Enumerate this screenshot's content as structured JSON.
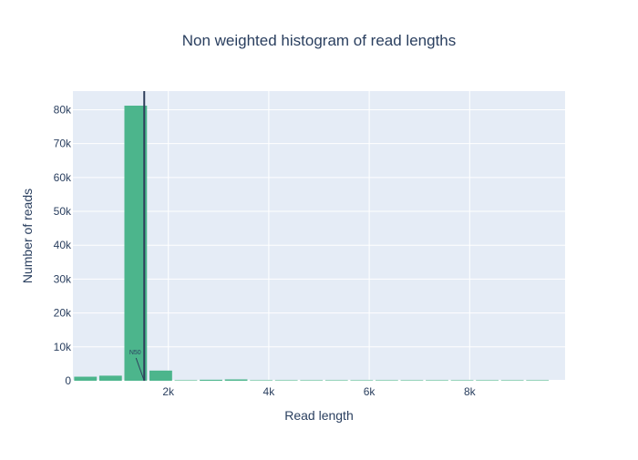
{
  "chart_data": {
    "type": "bar",
    "title": "Non weighted histogram of read lengths",
    "xlabel": "Read length",
    "ylabel": "Number of reads",
    "xlim": [
      100,
      9900
    ],
    "ylim": [
      0,
      85500
    ],
    "bin_width": 500,
    "bars": [
      {
        "x": 350,
        "value": 1200
      },
      {
        "x": 850,
        "value": 1500
      },
      {
        "x": 1350,
        "value": 81200
      },
      {
        "x": 1850,
        "value": 3000
      },
      {
        "x": 2350,
        "value": 100
      },
      {
        "x": 2850,
        "value": 300
      },
      {
        "x": 3350,
        "value": 400
      },
      {
        "x": 3850,
        "value": 80
      },
      {
        "x": 4350,
        "value": 50
      },
      {
        "x": 4850,
        "value": 40
      },
      {
        "x": 5350,
        "value": 30
      },
      {
        "x": 5850,
        "value": 20
      },
      {
        "x": 6350,
        "value": 20
      },
      {
        "x": 6850,
        "value": 15
      },
      {
        "x": 7350,
        "value": 10
      },
      {
        "x": 7850,
        "value": 10
      },
      {
        "x": 8350,
        "value": 10
      },
      {
        "x": 8850,
        "value": 8
      },
      {
        "x": 9350,
        "value": 5
      }
    ],
    "x_ticks": [
      {
        "value": 2000,
        "label": "2k"
      },
      {
        "value": 4000,
        "label": "4k"
      },
      {
        "value": 6000,
        "label": "6k"
      },
      {
        "value": 8000,
        "label": "8k"
      }
    ],
    "y_ticks": [
      {
        "value": 0,
        "label": "0"
      },
      {
        "value": 10000,
        "label": "10k"
      },
      {
        "value": 20000,
        "label": "20k"
      },
      {
        "value": 30000,
        "label": "30k"
      },
      {
        "value": 40000,
        "label": "40k"
      },
      {
        "value": 50000,
        "label": "50k"
      },
      {
        "value": 60000,
        "label": "60k"
      },
      {
        "value": 70000,
        "label": "70k"
      },
      {
        "value": 80000,
        "label": "80k"
      }
    ],
    "vline": {
      "x": 1520,
      "label": "N50"
    },
    "grid": true,
    "bar_color": "#4cb58c",
    "plot_bg": "#e5ecf6",
    "vline_color": "#2f3f5c"
  }
}
